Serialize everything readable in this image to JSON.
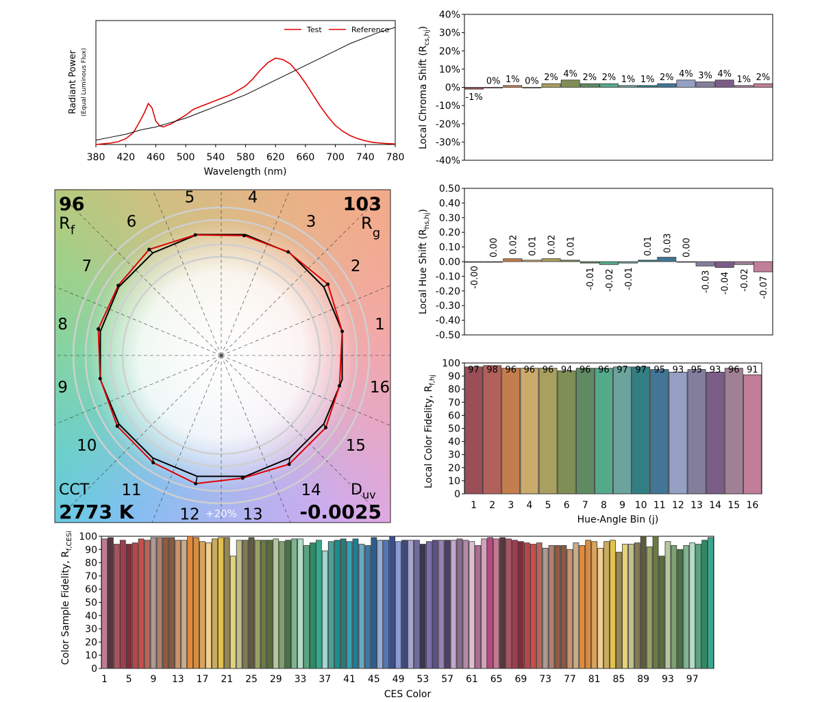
{
  "chart_data": [
    {
      "id": "spd",
      "type": "line",
      "xlabel": "Wavelength (nm)",
      "ylabel": "Radiant Power",
      "ylabel_sub": "(Equal Luminous Flux)",
      "xlim": [
        380,
        780
      ],
      "xticks": [
        "380",
        "420",
        "460",
        "500",
        "540",
        "580",
        "620",
        "660",
        "700",
        "740",
        "780"
      ],
      "legend": "top-right",
      "series": [
        {
          "name": "Test",
          "color": "#e00000",
          "x": [
            380,
            390,
            400,
            410,
            420,
            430,
            440,
            445,
            450,
            455,
            460,
            465,
            470,
            480,
            490,
            500,
            510,
            520,
            530,
            540,
            550,
            560,
            570,
            580,
            590,
            600,
            610,
            620,
            630,
            640,
            650,
            660,
            670,
            680,
            690,
            700,
            710,
            720,
            730,
            740,
            750,
            760,
            770,
            780
          ],
          "y": [
            0,
            0.005,
            0.01,
            0.02,
            0.04,
            0.08,
            0.17,
            0.22,
            0.28,
            0.25,
            0.16,
            0.13,
            0.12,
            0.14,
            0.17,
            0.2,
            0.24,
            0.26,
            0.28,
            0.3,
            0.32,
            0.34,
            0.37,
            0.4,
            0.45,
            0.51,
            0.56,
            0.59,
            0.58,
            0.55,
            0.49,
            0.42,
            0.34,
            0.26,
            0.19,
            0.13,
            0.09,
            0.06,
            0.04,
            0.025,
            0.015,
            0.01,
            0.006,
            0.004
          ]
        },
        {
          "name": "Reference",
          "color": "#000000",
          "x": [
            380,
            400,
            420,
            440,
            460,
            480,
            500,
            520,
            540,
            560,
            580,
            600,
            620,
            640,
            660,
            680,
            700,
            720,
            740,
            760,
            780
          ],
          "y": [
            0.03,
            0.05,
            0.07,
            0.1,
            0.12,
            0.15,
            0.18,
            0.22,
            0.26,
            0.3,
            0.34,
            0.39,
            0.44,
            0.49,
            0.54,
            0.59,
            0.64,
            0.69,
            0.73,
            0.77,
            0.8
          ]
        }
      ]
    },
    {
      "id": "chroma",
      "type": "bar",
      "ylabel": "Local Chroma Shift (R",
      "ylabel_sub": "cs,hj",
      "ylabel_end": ")",
      "ylim": [
        -0.4,
        0.4
      ],
      "yticks": [
        "-40%",
        "-30%",
        "-20%",
        "-10%",
        "0%",
        "10%",
        "20%",
        "30%",
        "40%"
      ],
      "categories": [
        "1",
        "2",
        "3",
        "4",
        "5",
        "6",
        "7",
        "8",
        "9",
        "10",
        "11",
        "12",
        "13",
        "14",
        "15",
        "16"
      ],
      "values": [
        -0.01,
        0.0,
        0.01,
        0.0,
        0.02,
        0.04,
        0.02,
        0.02,
        0.01,
        0.01,
        0.02,
        0.04,
        0.03,
        0.04,
        0.01,
        0.02
      ],
      "labels": [
        "-1%",
        "0%",
        "1%",
        "0%",
        "2%",
        "4%",
        "2%",
        "2%",
        "1%",
        "1%",
        "2%",
        "4%",
        "3%",
        "4%",
        "1%",
        "2%"
      ]
    },
    {
      "id": "hue",
      "type": "bar",
      "ylabel": "Local Hue Shift (R",
      "ylabel_sub": "hs,hj",
      "ylabel_end": ")",
      "ylim": [
        -0.5,
        0.5
      ],
      "yticks": [
        "-0.50",
        "-0.40",
        "-0.30",
        "-0.20",
        "-0.10",
        "0.00",
        "0.10",
        "0.20",
        "0.30",
        "0.40",
        "0.50"
      ],
      "categories": [
        "1",
        "2",
        "3",
        "4",
        "5",
        "6",
        "7",
        "8",
        "9",
        "10",
        "11",
        "12",
        "13",
        "14",
        "15",
        "16"
      ],
      "values": [
        -0.0,
        0.0,
        0.02,
        0.01,
        0.02,
        0.01,
        -0.01,
        -0.02,
        -0.01,
        0.01,
        0.03,
        0.0,
        -0.03,
        -0.04,
        -0.02,
        -0.07
      ],
      "labels": [
        "-0.00",
        "0.00",
        "0.02",
        "0.01",
        "0.02",
        "0.01",
        "-0.01",
        "-0.02",
        "-0.01",
        "0.01",
        "0.03",
        "0.00",
        "-0.03",
        "-0.04",
        "-0.02",
        "-0.07"
      ]
    },
    {
      "id": "fidelity",
      "type": "bar",
      "xlabel": "Hue-Angle Bin (j)",
      "ylabel": "Local Color Fidelity, R",
      "ylabel_sub": "f,hj",
      "ylim": [
        0,
        100
      ],
      "yticks": [
        "0",
        "10",
        "20",
        "30",
        "40",
        "50",
        "60",
        "70",
        "80",
        "90",
        "100"
      ],
      "categories": [
        "1",
        "2",
        "3",
        "4",
        "5",
        "6",
        "7",
        "8",
        "9",
        "10",
        "11",
        "12",
        "13",
        "14",
        "15",
        "16"
      ],
      "values": [
        97,
        98,
        96,
        96,
        96,
        94,
        96,
        96,
        97,
        97,
        95,
        93,
        95,
        93,
        96,
        91
      ]
    },
    {
      "id": "ces",
      "type": "bar",
      "xlabel": "CES Color",
      "ylabel": "Color Sample Fidelity, R",
      "ylabel_sub": "f,CESi",
      "ylim": [
        0,
        100
      ],
      "yticks": [
        "0",
        "10",
        "20",
        "30",
        "40",
        "50",
        "60",
        "70",
        "80",
        "90",
        "100"
      ],
      "xticks": [
        "1",
        "5",
        "9",
        "13",
        "17",
        "21",
        "25",
        "29",
        "33",
        "37",
        "41",
        "45",
        "49",
        "53",
        "57",
        "61",
        "65",
        "69",
        "73",
        "77",
        "81",
        "85",
        "89",
        "93",
        "97"
      ],
      "values": [
        98,
        99,
        94,
        97,
        94,
        95,
        98,
        97,
        99,
        99,
        99,
        99,
        97,
        97,
        100,
        99,
        96,
        95,
        98,
        99,
        99,
        85,
        97,
        97,
        99,
        97,
        97,
        97,
        98,
        96,
        97,
        98,
        98,
        93,
        95,
        97,
        89,
        96,
        97,
        98,
        96,
        98,
        94,
        93,
        99,
        97,
        97,
        100,
        96,
        97,
        97,
        97,
        94,
        96,
        97,
        97,
        97,
        97,
        98,
        97,
        96,
        93,
        98,
        99,
        98,
        99,
        98,
        97,
        96,
        95,
        94,
        95,
        91,
        93,
        93,
        93,
        90,
        95,
        93,
        97,
        96,
        91,
        96,
        97,
        88,
        94,
        94,
        95,
        100,
        92,
        100,
        85,
        96,
        93,
        90,
        93,
        95,
        94,
        97,
        99
      ]
    },
    {
      "id": "cvg",
      "type": "vector",
      "axis_numbers": [
        "1",
        "2",
        "3",
        "4",
        "5",
        "6",
        "7",
        "8",
        "9",
        "10",
        "11",
        "12",
        "13",
        "14",
        "15",
        "16"
      ],
      "scale_label": "+20%",
      "test_chroma": [
        1.0,
        1.04,
        1.0,
        0.99,
        1.0,
        1.04,
        1.01,
        1.02,
        1.0,
        1.02,
        1.03,
        1.06,
        1.01,
        1.04,
        1.03,
        0.99
      ],
      "test_hue_shift": [
        0.0,
        0.0,
        0.02,
        0.01,
        0.02,
        0.01,
        -0.01,
        -0.02,
        -0.01,
        0.01,
        0.03,
        0.0,
        -0.03,
        -0.04,
        -0.02,
        -0.07
      ]
    }
  ],
  "metrics": {
    "rf_value": "96",
    "rf_label": "R",
    "rf_sub": "f",
    "rg_value": "103",
    "rg_label": "R",
    "rg_sub": "g",
    "cct_label": "CCT",
    "cct_value": "2773 K",
    "duv_label": "D",
    "duv_sub": "uv",
    "duv_value": "-0.0025"
  },
  "colors": {
    "hue_bins": [
      "#9a4e57",
      "#b1615a",
      "#c47e4e",
      "#cbab6b",
      "#a99f5f",
      "#7f8e55",
      "#5f8a62",
      "#55a98b",
      "#6ca49d",
      "#317f83",
      "#427596",
      "#95a0c4",
      "#847e9d",
      "#7b5d88",
      "#a18096",
      "#c17e99"
    ],
    "test_line": "#e00000",
    "reference_line": "#000000"
  }
}
